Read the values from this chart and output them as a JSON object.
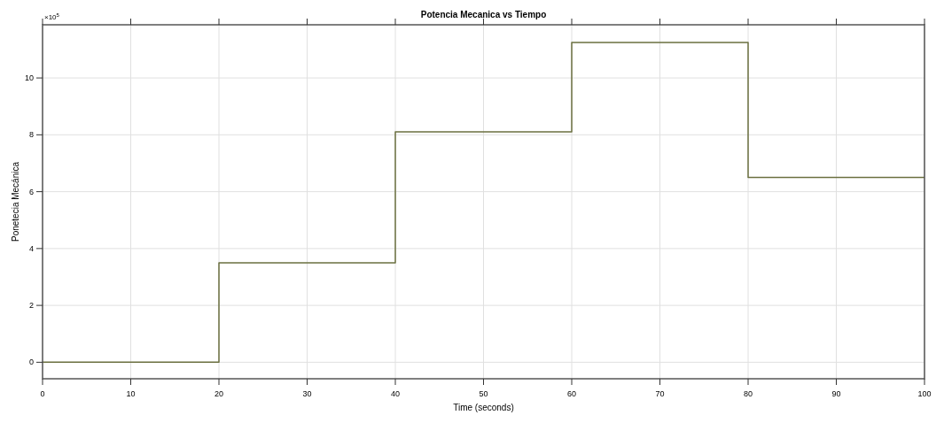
{
  "chart_data": {
    "type": "step",
    "title": "Potencia Mecanica vs Tiempo",
    "xlabel": "Time (seconds)",
    "ylabel": "Ponetecia Mecánica",
    "annotations": [
      "×10$^{5}$"
    ],
    "x": [
      0,
      20,
      40,
      60,
      80,
      100
    ],
    "series": [
      {
        "color": "#6b7040",
        "values": [
          0,
          3.5,
          8.1,
          11.25,
          6.5,
          6.5
        ]
      }
    ],
    "xlim": [
      0,
      100
    ],
    "xticks": [
      0,
      10,
      20,
      30,
      40,
      50,
      60,
      70,
      80,
      90,
      100
    ],
    "ylim": [
      -0.58,
      11.87
    ],
    "yticks": [
      0,
      2,
      4,
      6,
      8,
      10
    ],
    "grid": true
  }
}
